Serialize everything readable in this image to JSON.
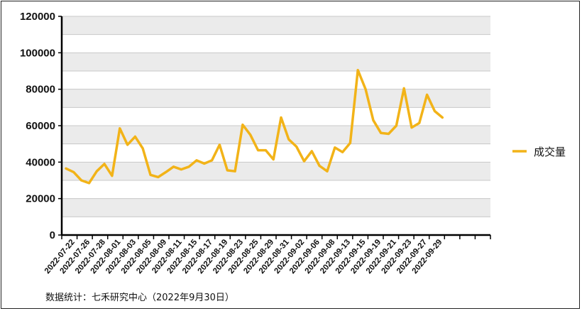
{
  "chart_data": {
    "type": "line",
    "ylim": [
      0,
      120000
    ],
    "yticks": [
      "0",
      "20000",
      "40000",
      "60000",
      "80000",
      "100000",
      "120000"
    ],
    "grid": true,
    "legend_position": "right",
    "colors": {
      "series": "#F2B318",
      "band": "#EBEBEB",
      "grid": "#C8C8C8",
      "axis": "#000000"
    },
    "x_tick_labels": [
      "2022-07-22",
      "2022-07-26",
      "2022-07-28",
      "2022-08-01",
      "2022-08-03",
      "2022-08-05",
      "2022-08-09",
      "2022-08-11",
      "2022-08-15",
      "2022-08-17",
      "2022-08-19",
      "2022-08-23",
      "2022-08-25",
      "2022-08-29",
      "2022-08-31",
      "2022-09-02",
      "2022-09-06",
      "2022-09-08",
      "2022-09-13",
      "2022-09-15",
      "2022-09-19",
      "2022-09-21",
      "2022-09-23",
      "2022-09-27",
      "2022-09-29",
      "",
      "",
      ""
    ],
    "series": [
      {
        "name": "成交量",
        "values": [
          36500,
          34500,
          30000,
          28500,
          35000,
          39000,
          32500,
          58500,
          49500,
          54000,
          47500,
          33000,
          31800,
          34500,
          37500,
          36000,
          37500,
          41000,
          39200,
          41000,
          49500,
          35500,
          35000,
          60500,
          55000,
          46500,
          46500,
          41500,
          64500,
          52500,
          48500,
          40500,
          46000,
          38000,
          35000,
          48000,
          45500,
          50500,
          90500,
          80000,
          63000,
          56000,
          55500,
          60000,
          80500,
          59000,
          61500,
          77000,
          68000,
          64500
        ]
      }
    ]
  },
  "source_text": "数据统计：七禾研究中心（2022年9月30日）"
}
